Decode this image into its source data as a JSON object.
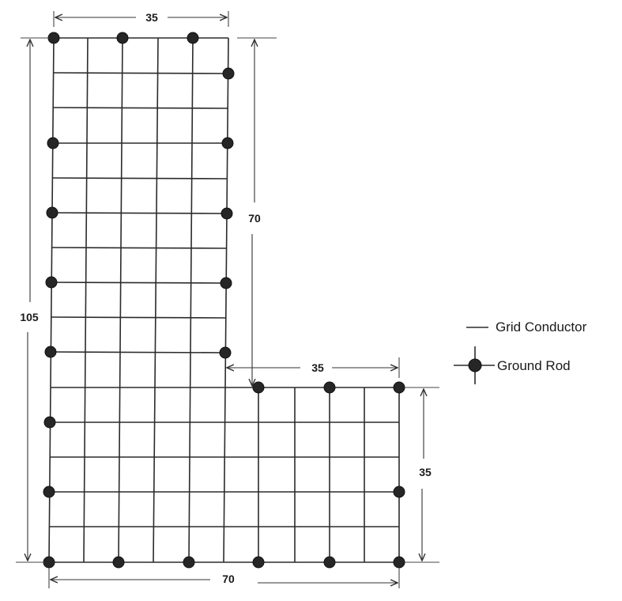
{
  "dimensions": {
    "top_width": "35",
    "right_upper_height": "70",
    "total_height": "105",
    "step_width": "35",
    "right_lower_height": "35",
    "bottom_width": "70"
  },
  "legend": {
    "grid_conductor": "Grid Conductor",
    "ground_rod": "Ground Rod"
  },
  "colors": {
    "conductor": "#2b2b2b",
    "rod": "#262626"
  }
}
